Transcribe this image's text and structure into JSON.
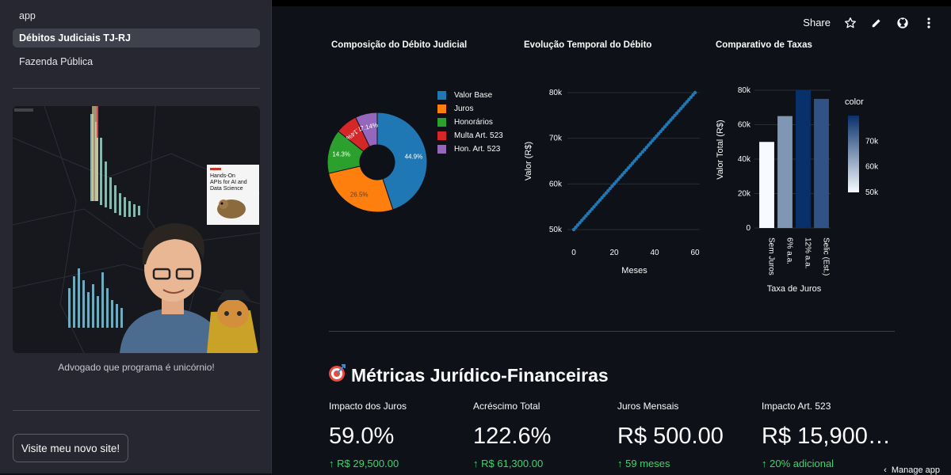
{
  "sidebar": {
    "nav": [
      {
        "label": "app"
      },
      {
        "label": "Débitos Judiciais TJ-RJ"
      },
      {
        "label": "Fazenda Pública"
      }
    ],
    "image_caption": "Advogado que programa é unicórnio!",
    "book_title": "Hands-On APIs for AI and Data Science",
    "visit_button": "Visite meu novo site!"
  },
  "toolbar": {
    "share_label": "Share",
    "icons": [
      "star-icon",
      "edit-pencil-icon",
      "github-icon",
      "kebab-menu-icon"
    ]
  },
  "charts": {
    "pie_title": "Composição do Débito Judicial",
    "line_title": "Evolução Temporal do Débito",
    "bar_title": "Comparativo de Taxas"
  },
  "chart_data": [
    {
      "type": "pie",
      "title": "Composição do Débito Judicial",
      "hole": true,
      "labels": [
        "Valor Base",
        "Juros",
        "Honorários",
        "Multa Art. 523",
        "Hon. Art. 523"
      ],
      "values": [
        44.9,
        26.5,
        14.3,
        7.14,
        7.14
      ],
      "value_labels": [
        "44.9%",
        "26.5%",
        "14.3%",
        "7.14%",
        "7.14%"
      ],
      "colors": [
        "#1f77b4",
        "#ff7f0e",
        "#2ca02c",
        "#d62728",
        "#9467bd"
      ],
      "legend": "right"
    },
    {
      "type": "line",
      "title": "Evolução Temporal do Débito",
      "xlabel": "Meses",
      "ylabel": "Valor (R$)",
      "x": [
        0,
        60
      ],
      "y": [
        50000,
        80000
      ],
      "xticks": [
        "0",
        "20",
        "40",
        "60"
      ],
      "yticks": [
        "50k",
        "60k",
        "70k",
        "80k"
      ],
      "xlim": [
        0,
        60
      ],
      "ylim": [
        50000,
        80000
      ],
      "color": "#1f77b4",
      "markers": true
    },
    {
      "type": "bar",
      "title": "Comparativo de Taxas",
      "xlabel": "Taxa de Juros",
      "ylabel": "Valor Total (R$)",
      "categories": [
        "Sem Juros",
        "6% a.a.",
        "12% a.a.",
        "Selic (Est.)"
      ],
      "values": [
        50000,
        65000,
        80000,
        75000
      ],
      "yticks": [
        "0",
        "20k",
        "40k",
        "60k",
        "80k"
      ],
      "ylim": [
        0,
        80000
      ],
      "colorbar": {
        "title": "color",
        "ticks": [
          "50k",
          "60k",
          "70k"
        ],
        "range": [
          50000,
          80000
        ]
      }
    }
  ],
  "metrics_section": {
    "icon": "target-icon",
    "title": "Métricas Jurídico-Financeiras",
    "items": [
      {
        "label": "Impacto dos Juros",
        "value": "59.0%",
        "delta": "R$ 29,500.00"
      },
      {
        "label": "Acréscimo Total",
        "value": "122.6%",
        "delta": "R$ 61,300.00"
      },
      {
        "label": "Juros Mensais",
        "value": "R$ 500.00",
        "delta": "59 meses"
      },
      {
        "label": "Impacto Art. 523",
        "value": "R$ 15,900…",
        "delta": "20% adicional"
      }
    ]
  },
  "footer": {
    "manage_app": "Manage app"
  },
  "colors": {
    "background": "#0e1117",
    "sidebar": "#262730",
    "accent_delta": "#3dd56d"
  }
}
